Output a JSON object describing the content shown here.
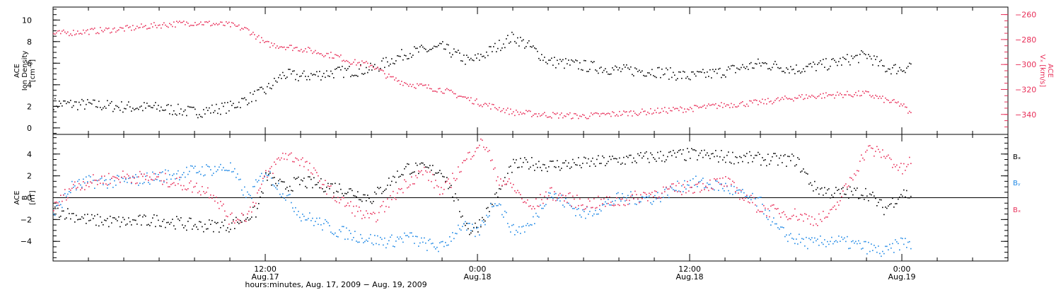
{
  "chart_data": [
    {
      "type": "scatter",
      "panel": "top",
      "ylabel_lines": [
        "ACE",
        "Ion Density",
        "[cm⁻³]"
      ],
      "ylabel_right_lines": [
        "ACE",
        "Vₓ [km/s]"
      ],
      "yticks": [
        "0",
        "2",
        "4",
        "6",
        "8",
        "10"
      ],
      "ylim": [
        -0.6,
        11.2
      ],
      "yticks_right": [
        "−260",
        "−280",
        "−300",
        "−320",
        "−340"
      ],
      "ylim_right": [
        -356,
        -254
      ],
      "series": [
        {
          "color": "#000000",
          "axis": "left",
          "hours": [
            0,
            2,
            4,
            6,
            8,
            10,
            12,
            13,
            14,
            16,
            18,
            20,
            22,
            23.5,
            24,
            26,
            27,
            28,
            30,
            32,
            34,
            36,
            37,
            38,
            40,
            42,
            44,
            46,
            47,
            48,
            48.5
          ],
          "values": [
            2.3,
            2.2,
            2.0,
            1.9,
            1.5,
            2.0,
            3.5,
            5.0,
            4.8,
            5.2,
            5.5,
            7.0,
            7.5,
            6.2,
            6.5,
            8.5,
            7.5,
            6.2,
            5.8,
            5.4,
            5.3,
            4.8,
            5.0,
            5.3,
            6.0,
            5.5,
            6.0,
            6.8,
            5.6,
            5.5,
            6.0
          ]
        },
        {
          "color": "#e8305a",
          "axis": "right",
          "hours": [
            0,
            2,
            4,
            6,
            8,
            10,
            11,
            12,
            13,
            14,
            15,
            16,
            17,
            18,
            19,
            20,
            22,
            23,
            24,
            26,
            28,
            30,
            32,
            34,
            36,
            38,
            40,
            42,
            44,
            46,
            47,
            48,
            48.5
          ],
          "values": [
            -275,
            -273,
            -271,
            -268,
            -266,
            -268,
            -272,
            -283,
            -285,
            -287,
            -290,
            -293,
            -298,
            -300,
            -310,
            -315,
            -320,
            -325,
            -330,
            -338,
            -340,
            -341,
            -339,
            -337,
            -335,
            -332,
            -330,
            -326,
            -324,
            -323,
            -328,
            -332,
            -340
          ]
        }
      ]
    },
    {
      "type": "scatter",
      "panel": "bottom",
      "ylabel_lines": [
        "ACE",
        "B",
        "[nT]"
      ],
      "yticks": [
        "−4",
        "−2",
        "0",
        "2",
        "4"
      ],
      "ylim": [
        -5.8,
        5.8
      ],
      "legend": [
        {
          "text": "Bₓ",
          "color": "#000000"
        },
        {
          "text": "Bᵧ",
          "color": "#1e88e5"
        },
        {
          "text": "Bₓ",
          "color": "#e8305a"
        }
      ],
      "series": [
        {
          "color": "#000000",
          "hours": [
            0,
            1,
            2,
            4,
            6,
            8,
            10,
            11.5,
            12,
            13,
            14,
            16,
            18,
            19,
            20,
            22,
            23.5,
            24,
            25,
            26,
            27,
            28,
            30,
            32,
            34,
            36,
            38,
            40,
            41,
            42,
            43,
            44,
            46,
            47,
            48,
            48.5
          ],
          "values": [
            -1.0,
            -1.5,
            -2.0,
            -2.2,
            -2.0,
            -2.5,
            -2.5,
            -1.2,
            2.0,
            1.0,
            1.5,
            1.0,
            0.0,
            1.5,
            2.8,
            2.5,
            -3.0,
            -2.5,
            0.0,
            3.0,
            3.2,
            3.0,
            3.2,
            3.5,
            3.8,
            4.0,
            3.8,
            3.6,
            3.5,
            3.5,
            1.0,
            0.5,
            0.5,
            -1.0,
            0.5,
            0.2
          ]
        },
        {
          "color": "#1e88e5",
          "hours": [
            0,
            1,
            2,
            4,
            6,
            8,
            10,
            11,
            12,
            13,
            14,
            16,
            18,
            19,
            20,
            21,
            22,
            23,
            24,
            25,
            26,
            27,
            28,
            30,
            32,
            34,
            36,
            38,
            40,
            41,
            42,
            43,
            44,
            46,
            47,
            48,
            48.5
          ],
          "values": [
            -1.5,
            1.0,
            1.5,
            1.5,
            2.0,
            2.5,
            2.8,
            0.0,
            2.5,
            0.5,
            -1.5,
            -3.0,
            -3.8,
            -4.0,
            -3.5,
            -4.2,
            -4.5,
            -2.5,
            -3.2,
            0.0,
            -3.0,
            -2.5,
            0.5,
            -1.5,
            0.0,
            0.0,
            1.5,
            1.0,
            -0.5,
            -3.0,
            -3.8,
            -4.2,
            -3.8,
            -4.5,
            -5.0,
            -4.0,
            -4.2
          ]
        },
        {
          "color": "#e8305a",
          "hours": [
            0,
            1,
            2,
            4,
            6,
            8,
            9,
            10,
            11,
            12,
            13,
            14,
            16,
            18,
            20,
            21,
            22,
            24,
            24.5,
            25,
            26,
            27,
            28,
            30,
            32,
            34,
            36,
            38,
            40,
            42,
            43,
            44,
            46,
            47,
            48,
            48.5
          ],
          "values": [
            -1.0,
            1.0,
            1.5,
            2.0,
            1.8,
            1.0,
            0.5,
            -2.0,
            -1.5,
            2.0,
            4.0,
            3.5,
            0.0,
            -2.0,
            1.5,
            2.5,
            0.5,
            5.0,
            4.8,
            2.0,
            1.0,
            -1.0,
            0.5,
            -0.5,
            -0.3,
            0.5,
            1.0,
            1.5,
            -1.0,
            -1.5,
            -2.0,
            -1.5,
            4.5,
            4.0,
            2.5,
            3.5
          ]
        }
      ]
    }
  ],
  "x_axis": {
    "ticks": [
      {
        "time": "12:00",
        "date": "Aug.17",
        "hour": 12
      },
      {
        "time": "0:00",
        "date": "Aug.18",
        "hour": 24
      },
      {
        "time": "12:00",
        "date": "Aug.18",
        "hour": 36
      },
      {
        "time": "0:00",
        "date": "Aug.19",
        "hour": 48
      }
    ],
    "xlim": [
      0,
      54
    ],
    "xlabel": "hours:minutes, Aug. 17, 2009 − Aug. 19, 2009"
  }
}
